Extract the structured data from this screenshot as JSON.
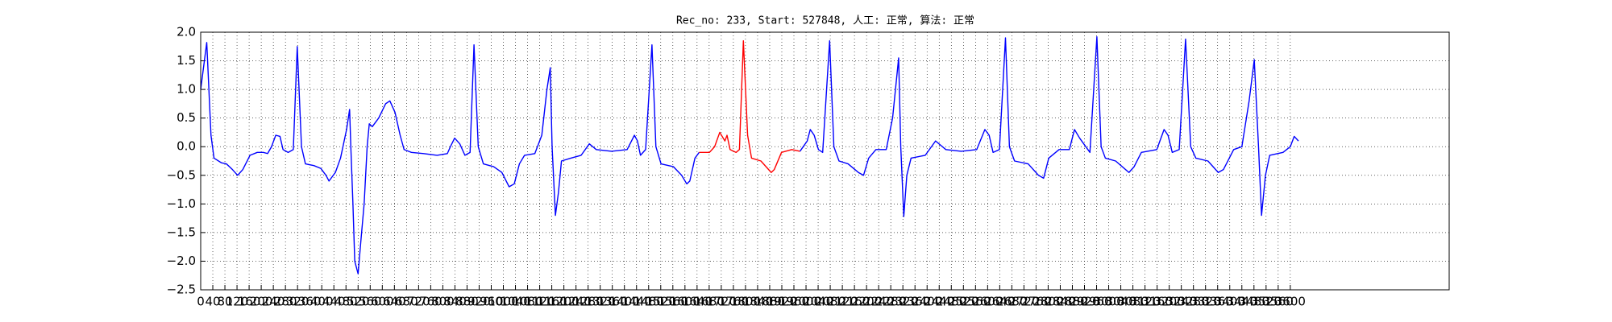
{
  "chart_data": {
    "type": "line",
    "title": "Rec_no: 233, Start: 527848, 人工: 正常, 算法: 正常",
    "xlim": [
      0,
      4125
    ],
    "xticks": [
      0,
      40,
      80,
      120,
      160,
      200,
      240,
      280,
      320,
      360,
      400,
      440,
      480,
      520,
      560,
      600,
      640,
      680,
      720,
      760,
      800,
      840,
      880,
      920,
      960,
      1000,
      1040,
      1080,
      1120,
      1160,
      1200,
      1240,
      1280,
      1320,
      1360,
      1400,
      1440,
      1480,
      1520,
      1560,
      1600,
      1640,
      1680,
      1720,
      1760,
      1800,
      1840,
      1880,
      1920,
      1960,
      2000,
      2040,
      2080,
      2120,
      2160,
      2200,
      2240,
      2280,
      2320,
      2360,
      2400,
      2440,
      2480,
      2520,
      2560,
      2600,
      2640,
      2680,
      2720,
      2760,
      2800,
      2840,
      2880,
      2920,
      2960,
      3000,
      3040,
      3080,
      3120,
      3160,
      3200,
      3240,
      3280,
      3320,
      3360,
      3400,
      3440,
      3480,
      3520,
      3560,
      3600
    ],
    "ylim": [
      -2.5,
      2.0
    ],
    "yticks": [
      {
        "value": -2.5,
        "label": "−2.5"
      },
      {
        "value": -2,
        "label": "−2.0"
      },
      {
        "value": -1.5,
        "label": "−1.5"
      },
      {
        "value": -1,
        "label": "−1.0"
      },
      {
        "value": -0.5,
        "label": "−0.5"
      },
      {
        "value": 0,
        "label": "0.0"
      },
      0.5,
      {
        "value": 1,
        "label": "1.0"
      },
      1.5,
      {
        "value": 2,
        "label": "2.0"
      }
    ],
    "grid": true,
    "series": [
      {
        "color": "#0000ff",
        "x": [
          0,
          20,
          34,
          44,
          68,
          85,
          105,
          122,
          139,
          163,
          187,
          207,
          221,
          234,
          248,
          262,
          272,
          289,
          306,
          319,
          333,
          346,
          374,
          397,
          414,
          424,
          445,
          462,
          482,
          492,
          496,
          503,
          509,
          520,
          530,
          540,
          550,
          557,
          567,
          588,
          611,
          625,
          642,
          659,
          672,
          696,
          737,
          781,
          815,
          825,
          839,
          856,
          873,
          890,
          903,
          917,
          934,
          968,
          995,
          1019,
          1036,
          1053,
          1070,
          1104,
          1127,
          1144,
          1155,
          1161,
          1172,
          1182,
          1192,
          1223,
          1257,
          1284,
          1307,
          1358,
          1409,
          1433,
          1443,
          1453,
          1470,
          1491,
          1504,
          1521,
          1562,
          1589,
          1606,
          1616,
          1633,
          1647
        ],
        "values": [
          1.0,
          1.82,
          0.2,
          -0.2,
          -0.28,
          -0.3,
          -0.4,
          -0.5,
          -0.4,
          -0.15,
          -0.1,
          -0.1,
          -0.12,
          0.0,
          0.2,
          0.18,
          -0.05,
          -0.1,
          -0.05,
          1.75,
          0.0,
          -0.3,
          -0.33,
          -0.38,
          -0.5,
          -0.6,
          -0.45,
          -0.2,
          0.3,
          0.65,
          0.0,
          -1.0,
          -2.0,
          -2.22,
          -1.6,
          -1.0,
          0.0,
          0.4,
          0.35,
          0.5,
          0.75,
          0.8,
          0.6,
          0.2,
          -0.05,
          -0.1,
          -0.12,
          -0.15,
          -0.12,
          0.0,
          0.15,
          0.05,
          -0.15,
          -0.1,
          1.78,
          0.0,
          -0.3,
          -0.35,
          -0.45,
          -0.7,
          -0.65,
          -0.3,
          -0.15,
          -0.12,
          0.2,
          1.0,
          1.38,
          0.0,
          -1.2,
          -0.8,
          -0.25,
          -0.2,
          -0.15,
          0.05,
          -0.05,
          -0.08,
          -0.05,
          0.2,
          0.1,
          -0.15,
          -0.05,
          1.78,
          0.0,
          -0.3,
          -0.35,
          -0.5,
          -0.65,
          -0.6,
          -0.2,
          -0.1
        ]
      },
      {
        "color": "#ff0000",
        "x": [
          1647,
          1681,
          1698,
          1715,
          1732,
          1739,
          1749,
          1769,
          1780,
          1793,
          1807,
          1820,
          1851,
          1885,
          1895,
          1919,
          1953,
          1980
        ],
        "values": [
          -0.1,
          -0.1,
          0.0,
          0.25,
          0.1,
          0.2,
          -0.05,
          -0.1,
          -0.05,
          1.85,
          0.2,
          -0.2,
          -0.25,
          -0.45,
          -0.4,
          -0.1,
          -0.05,
          -0.08
        ]
      },
      {
        "color": "#0000ff",
        "x": [
          1980,
          2004,
          2014,
          2027,
          2041,
          2055,
          2078,
          2092,
          2109,
          2139,
          2173,
          2190,
          2207,
          2231,
          2265,
          2286,
          2306,
          2313,
          2323,
          2333,
          2347,
          2394,
          2428,
          2462,
          2513,
          2564,
          2591,
          2605,
          2618,
          2639,
          2659,
          2672,
          2689,
          2734,
          2768,
          2785,
          2802,
          2836,
          2870,
          2887,
          2904,
          2938,
          2961,
          2975,
          2989,
          3023,
          3067,
          3084,
          3108,
          3159,
          3183,
          3196,
          3210,
          3233,
          3254,
          3271,
          3288,
          3328,
          3362,
          3379,
          3413,
          3440,
          3464,
          3481,
          3495,
          3505,
          3518,
          3532,
          3576,
          3600,
          3613,
          3627
        ],
        "values": [
          -0.08,
          0.1,
          0.3,
          0.2,
          -0.05,
          -0.1,
          1.85,
          0.0,
          -0.25,
          -0.3,
          -0.45,
          -0.5,
          -0.2,
          -0.05,
          -0.05,
          0.5,
          1.55,
          0.0,
          -1.22,
          -0.5,
          -0.2,
          -0.15,
          0.1,
          -0.05,
          -0.08,
          -0.05,
          0.3,
          0.2,
          -0.1,
          -0.05,
          1.9,
          0.0,
          -0.25,
          -0.3,
          -0.5,
          -0.55,
          -0.2,
          -0.05,
          -0.05,
          0.3,
          0.15,
          -0.1,
          1.92,
          0.0,
          -0.2,
          -0.25,
          -0.45,
          -0.35,
          -0.1,
          -0.05,
          0.3,
          0.2,
          -0.1,
          -0.05,
          1.88,
          0.0,
          -0.2,
          -0.25,
          -0.45,
          -0.4,
          -0.05,
          0.0,
          0.8,
          1.52,
          0.0,
          -1.2,
          -0.5,
          -0.15,
          -0.1,
          0.0,
          0.18,
          0.1
        ]
      }
    ]
  }
}
